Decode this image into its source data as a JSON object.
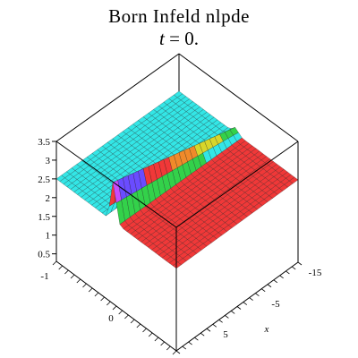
{
  "chart_data": {
    "type": "surface3d",
    "title": "Born  Infeld  nlpde",
    "subtitle_var": "t",
    "subtitle_rest": " = 0.",
    "x_axis_label": "x",
    "z_ticks": [
      "0.5",
      "1",
      "1.5",
      "2",
      "2.5",
      "3",
      "3.5"
    ],
    "x_ticks": [
      "-15",
      "-5",
      "5"
    ],
    "y_ticks": [
      "-1",
      "0"
    ],
    "zlim": [
      0.3,
      3.5
    ],
    "low_plateau_z": 2.5,
    "high_plateau_z": 2.5,
    "colors": {
      "low_plateau": "#33e6e6",
      "high_plateau": "#f03838",
      "peak_colormap": [
        "#33e6e6",
        "#33d14a",
        "#d8d62a",
        "#f08a2a",
        "#f03838",
        "#6a4cff",
        "#c64cff"
      ],
      "mesh": "#1a1a1a",
      "box": "#000000"
    }
  }
}
